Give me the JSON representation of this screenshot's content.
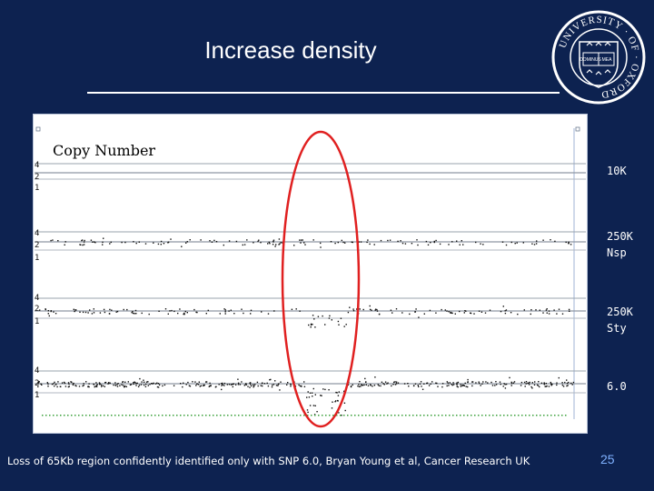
{
  "slide": {
    "title": "Increase density",
    "caption": "Loss of 65Kb region confidently identified only with SNP 6.0, Bryan Young et al, Cancer Research UK",
    "page_number": "25"
  },
  "crest": {
    "ring_text": "UNIVERSITY · OF · OXFORD",
    "book_text": "DOMINUS ILLUMINATIO MEA"
  },
  "plot": {
    "heading": "Copy Number",
    "cn_ticks": [
      "4",
      "2",
      "1"
    ],
    "tracks": [
      {
        "label": "10K"
      },
      {
        "label": "250K\nNsp"
      },
      {
        "label": "250K\nSty"
      },
      {
        "label": "6.0"
      }
    ]
  },
  "colors": {
    "background": "#0d2250",
    "highlight": "#e02020",
    "points": "#111111"
  }
}
